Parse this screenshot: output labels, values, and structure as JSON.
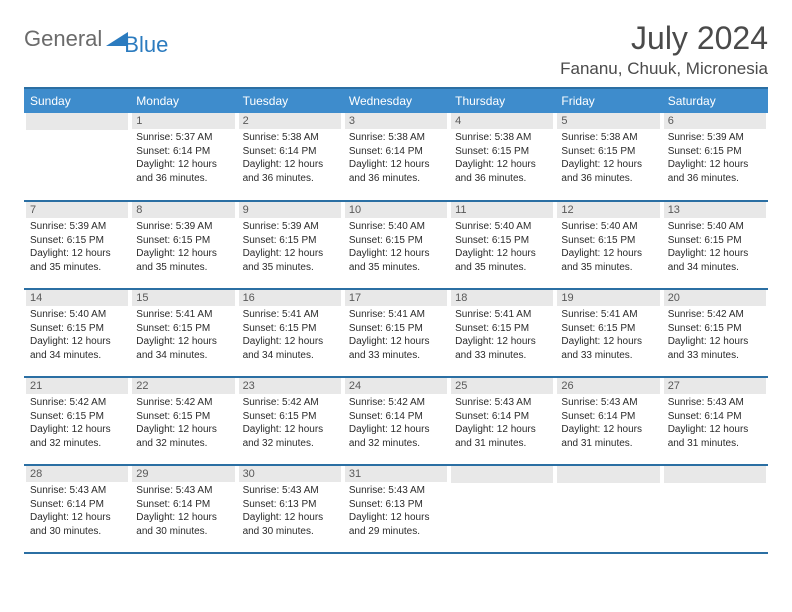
{
  "logo": {
    "general": "General",
    "blue": "Blue"
  },
  "title": "July 2024",
  "location": "Fananu, Chuuk, Micronesia",
  "colors": {
    "header_bg": "#3e8ccc",
    "header_border": "#2b6fa3",
    "daynum_bg": "#e8e8e8",
    "text_dark": "#2b2b2b",
    "text_gray": "#4a4a4a",
    "logo_gray": "#6b6b6b",
    "logo_blue": "#2b7bbf"
  },
  "weekdays": [
    "Sunday",
    "Monday",
    "Tuesday",
    "Wednesday",
    "Thursday",
    "Friday",
    "Saturday"
  ],
  "weeks": [
    [
      null,
      {
        "n": "1",
        "sr": "5:37 AM",
        "ss": "6:14 PM",
        "dl": "12 hours and 36 minutes."
      },
      {
        "n": "2",
        "sr": "5:38 AM",
        "ss": "6:14 PM",
        "dl": "12 hours and 36 minutes."
      },
      {
        "n": "3",
        "sr": "5:38 AM",
        "ss": "6:14 PM",
        "dl": "12 hours and 36 minutes."
      },
      {
        "n": "4",
        "sr": "5:38 AM",
        "ss": "6:15 PM",
        "dl": "12 hours and 36 minutes."
      },
      {
        "n": "5",
        "sr": "5:38 AM",
        "ss": "6:15 PM",
        "dl": "12 hours and 36 minutes."
      },
      {
        "n": "6",
        "sr": "5:39 AM",
        "ss": "6:15 PM",
        "dl": "12 hours and 36 minutes."
      }
    ],
    [
      {
        "n": "7",
        "sr": "5:39 AM",
        "ss": "6:15 PM",
        "dl": "12 hours and 35 minutes."
      },
      {
        "n": "8",
        "sr": "5:39 AM",
        "ss": "6:15 PM",
        "dl": "12 hours and 35 minutes."
      },
      {
        "n": "9",
        "sr": "5:39 AM",
        "ss": "6:15 PM",
        "dl": "12 hours and 35 minutes."
      },
      {
        "n": "10",
        "sr": "5:40 AM",
        "ss": "6:15 PM",
        "dl": "12 hours and 35 minutes."
      },
      {
        "n": "11",
        "sr": "5:40 AM",
        "ss": "6:15 PM",
        "dl": "12 hours and 35 minutes."
      },
      {
        "n": "12",
        "sr": "5:40 AM",
        "ss": "6:15 PM",
        "dl": "12 hours and 35 minutes."
      },
      {
        "n": "13",
        "sr": "5:40 AM",
        "ss": "6:15 PM",
        "dl": "12 hours and 34 minutes."
      }
    ],
    [
      {
        "n": "14",
        "sr": "5:40 AM",
        "ss": "6:15 PM",
        "dl": "12 hours and 34 minutes."
      },
      {
        "n": "15",
        "sr": "5:41 AM",
        "ss": "6:15 PM",
        "dl": "12 hours and 34 minutes."
      },
      {
        "n": "16",
        "sr": "5:41 AM",
        "ss": "6:15 PM",
        "dl": "12 hours and 34 minutes."
      },
      {
        "n": "17",
        "sr": "5:41 AM",
        "ss": "6:15 PM",
        "dl": "12 hours and 33 minutes."
      },
      {
        "n": "18",
        "sr": "5:41 AM",
        "ss": "6:15 PM",
        "dl": "12 hours and 33 minutes."
      },
      {
        "n": "19",
        "sr": "5:41 AM",
        "ss": "6:15 PM",
        "dl": "12 hours and 33 minutes."
      },
      {
        "n": "20",
        "sr": "5:42 AM",
        "ss": "6:15 PM",
        "dl": "12 hours and 33 minutes."
      }
    ],
    [
      {
        "n": "21",
        "sr": "5:42 AM",
        "ss": "6:15 PM",
        "dl": "12 hours and 32 minutes."
      },
      {
        "n": "22",
        "sr": "5:42 AM",
        "ss": "6:15 PM",
        "dl": "12 hours and 32 minutes."
      },
      {
        "n": "23",
        "sr": "5:42 AM",
        "ss": "6:15 PM",
        "dl": "12 hours and 32 minutes."
      },
      {
        "n": "24",
        "sr": "5:42 AM",
        "ss": "6:14 PM",
        "dl": "12 hours and 32 minutes."
      },
      {
        "n": "25",
        "sr": "5:43 AM",
        "ss": "6:14 PM",
        "dl": "12 hours and 31 minutes."
      },
      {
        "n": "26",
        "sr": "5:43 AM",
        "ss": "6:14 PM",
        "dl": "12 hours and 31 minutes."
      },
      {
        "n": "27",
        "sr": "5:43 AM",
        "ss": "6:14 PM",
        "dl": "12 hours and 31 minutes."
      }
    ],
    [
      {
        "n": "28",
        "sr": "5:43 AM",
        "ss": "6:14 PM",
        "dl": "12 hours and 30 minutes."
      },
      {
        "n": "29",
        "sr": "5:43 AM",
        "ss": "6:14 PM",
        "dl": "12 hours and 30 minutes."
      },
      {
        "n": "30",
        "sr": "5:43 AM",
        "ss": "6:13 PM",
        "dl": "12 hours and 30 minutes."
      },
      {
        "n": "31",
        "sr": "5:43 AM",
        "ss": "6:13 PM",
        "dl": "12 hours and 29 minutes."
      },
      null,
      null,
      null
    ]
  ],
  "labels": {
    "sunrise": "Sunrise:",
    "sunset": "Sunset:",
    "daylight": "Daylight:"
  }
}
